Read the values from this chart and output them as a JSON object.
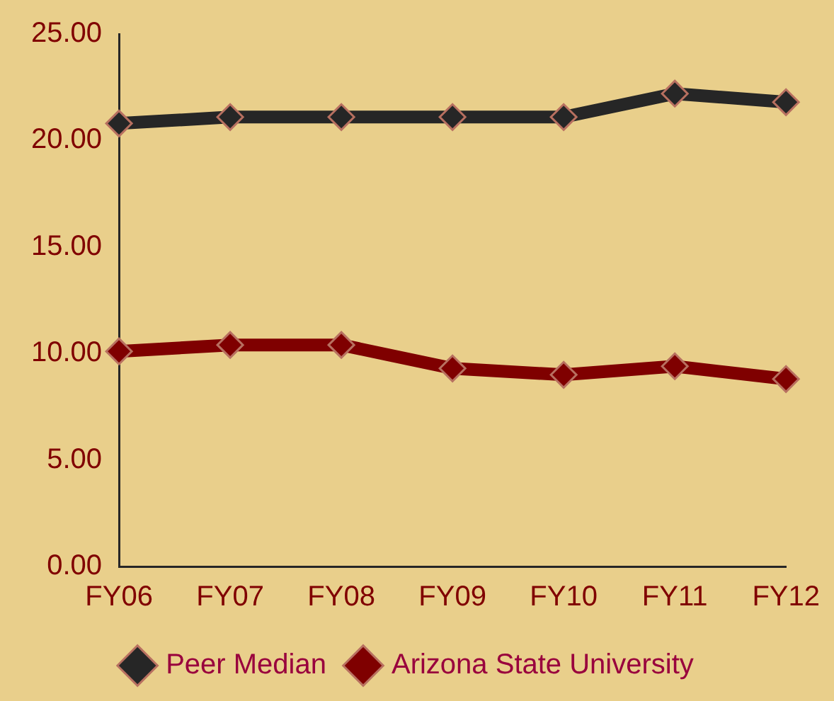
{
  "chart_data": {
    "type": "line",
    "categories": [
      "FY06",
      "FY07",
      "FY08",
      "FY09",
      "FY10",
      "FY11",
      "FY12"
    ],
    "series": [
      {
        "name": "Peer Median",
        "color": "#262626",
        "values": [
          20.8,
          21.1,
          21.1,
          21.1,
          21.1,
          22.2,
          21.8
        ]
      },
      {
        "name": "Arizona State University",
        "color": "#7f0000",
        "values": [
          10.1,
          10.4,
          10.4,
          9.3,
          9.0,
          9.4,
          8.8
        ]
      }
    ],
    "ylim": [
      0,
      25
    ],
    "yticks": [
      {
        "value": 0,
        "label": "0.00"
      },
      {
        "value": 5,
        "label": "5.00"
      },
      {
        "value": 10,
        "label": "10.00"
      },
      {
        "value": 15,
        "label": "15.00"
      },
      {
        "value": 20,
        "label": "20.00"
      },
      {
        "value": 25,
        "label": "25.00"
      }
    ],
    "grid": false,
    "legend": "bottom",
    "marker": "diamond",
    "line_style": "solid"
  }
}
